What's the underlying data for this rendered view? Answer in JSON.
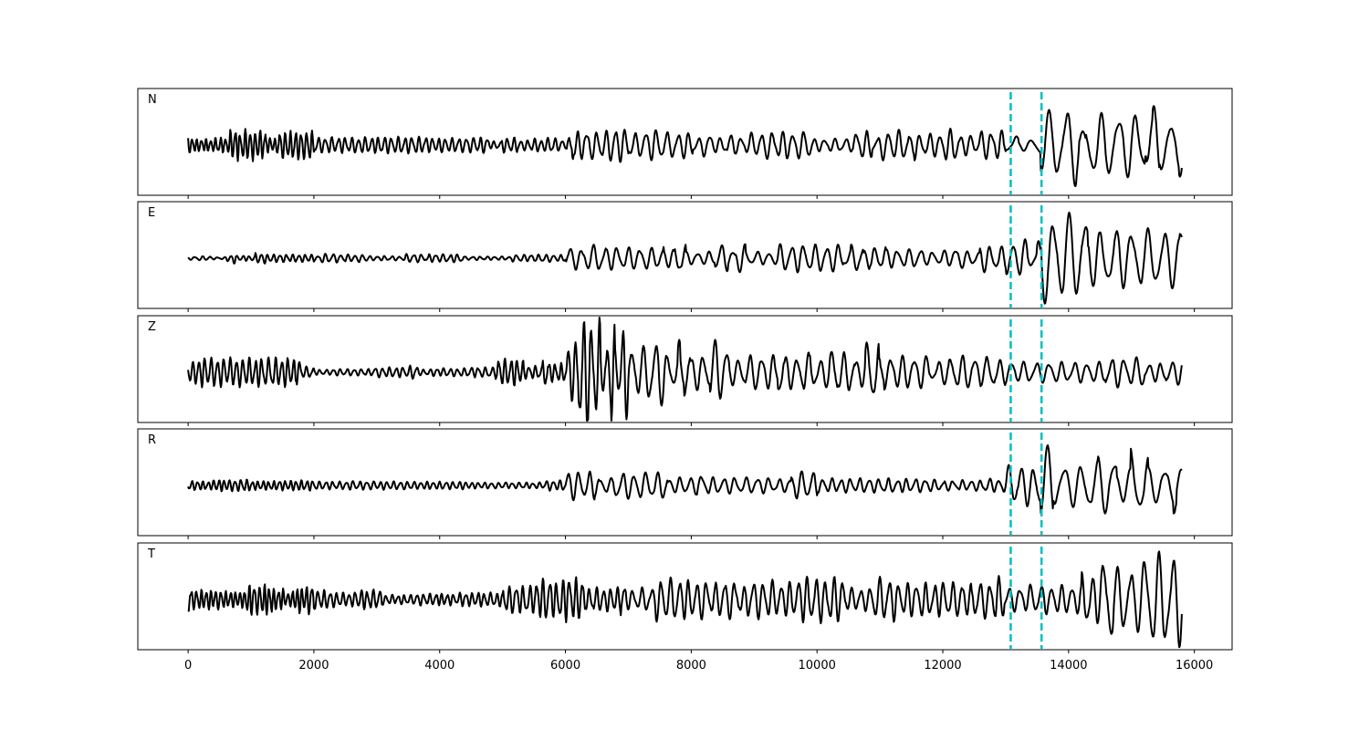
{
  "chart_data": {
    "type": "line",
    "title": "",
    "xlabel": "",
    "ylabel": "",
    "xlim": [
      -800,
      16600
    ],
    "x_ticks": [
      0,
      2000,
      4000,
      6000,
      8000,
      10000,
      12000,
      14000,
      16000
    ],
    "x_tick_labels": [
      "0",
      "2000",
      "4000",
      "6000",
      "8000",
      "10000",
      "12000",
      "14000",
      "16000"
    ],
    "sample_range": [
      0,
      15800
    ],
    "grid": false,
    "legend": "none",
    "line_color": "#000000",
    "marker_color": "#00bfbf",
    "vertical_markers": [
      13080,
      13570
    ],
    "panels": [
      {
        "label": "N",
        "segments": [
          {
            "x0": 0,
            "x1": 2000,
            "amp": 0.22,
            "period": 80
          },
          {
            "x0": 2000,
            "x1": 6100,
            "amp": 0.12,
            "period": 110
          },
          {
            "x0": 6100,
            "x1": 7000,
            "amp": 0.32,
            "period": 150
          },
          {
            "x0": 7000,
            "x1": 13000,
            "amp": 0.22,
            "period": 170
          },
          {
            "x0": 13000,
            "x1": 13550,
            "amp": 0.16,
            "period": 260
          },
          {
            "x0": 13550,
            "x1": 15800,
            "amp": 0.55,
            "period": 280
          }
        ]
      },
      {
        "label": "E",
        "segments": [
          {
            "x0": 0,
            "x1": 600,
            "amp": 0.03,
            "period": 120
          },
          {
            "x0": 600,
            "x1": 2000,
            "amp": 0.09,
            "period": 100
          },
          {
            "x0": 2000,
            "x1": 6000,
            "amp": 0.06,
            "period": 120
          },
          {
            "x0": 6000,
            "x1": 13000,
            "amp": 0.2,
            "period": 190
          },
          {
            "x0": 13000,
            "x1": 13550,
            "amp": 0.28,
            "period": 200
          },
          {
            "x0": 13550,
            "x1": 15800,
            "amp": 0.6,
            "period": 260
          }
        ]
      },
      {
        "label": "Z",
        "segments": [
          {
            "x0": 0,
            "x1": 1800,
            "amp": 0.2,
            "period": 100
          },
          {
            "x0": 1800,
            "x1": 4900,
            "amp": 0.09,
            "period": 110
          },
          {
            "x0": 4900,
            "x1": 6000,
            "amp": 0.22,
            "period": 100
          },
          {
            "x0": 6000,
            "x1": 7000,
            "amp": 0.78,
            "period": 130
          },
          {
            "x0": 7000,
            "x1": 11000,
            "amp": 0.45,
            "period": 190
          },
          {
            "x0": 11000,
            "x1": 15800,
            "amp": 0.25,
            "period": 200
          }
        ]
      },
      {
        "label": "R",
        "segments": [
          {
            "x0": 0,
            "x1": 2000,
            "amp": 0.09,
            "period": 90
          },
          {
            "x0": 2000,
            "x1": 6000,
            "amp": 0.07,
            "period": 110
          },
          {
            "x0": 6000,
            "x1": 10000,
            "amp": 0.2,
            "period": 180
          },
          {
            "x0": 10000,
            "x1": 13000,
            "amp": 0.1,
            "period": 150
          },
          {
            "x0": 13000,
            "x1": 13550,
            "amp": 0.3,
            "period": 200
          },
          {
            "x0": 13550,
            "x1": 15800,
            "amp": 0.55,
            "period": 270
          }
        ]
      },
      {
        "label": "T",
        "segments": [
          {
            "x0": 0,
            "x1": 2000,
            "amp": 0.25,
            "period": 80
          },
          {
            "x0": 2000,
            "x1": 5000,
            "amp": 0.16,
            "period": 100
          },
          {
            "x0": 5000,
            "x1": 7000,
            "amp": 0.32,
            "period": 110
          },
          {
            "x0": 7000,
            "x1": 13000,
            "amp": 0.33,
            "period": 150
          },
          {
            "x0": 13000,
            "x1": 14500,
            "amp": 0.4,
            "period": 170
          },
          {
            "x0": 14500,
            "x1": 15800,
            "amp": 0.75,
            "period": 220
          }
        ]
      }
    ]
  }
}
